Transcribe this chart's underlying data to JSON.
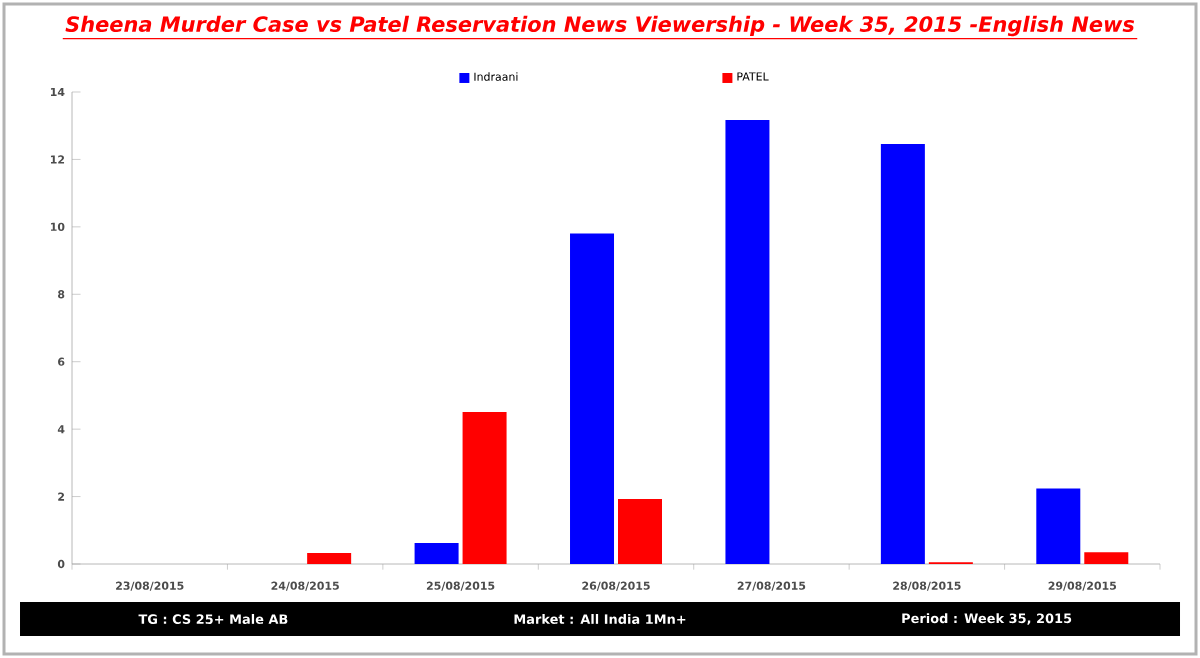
{
  "chart_data": {
    "type": "bar",
    "title": "Sheena Murder Case vs Patel Reservation News Viewership - Week 35, 2015 -English News",
    "categories": [
      "23/08/2015",
      "24/08/2015",
      "25/08/2015",
      "26/08/2015",
      "27/08/2015",
      "28/08/2015",
      "29/08/2015"
    ],
    "series": [
      {
        "name": "Indraani",
        "color": "#0000ff",
        "values": [
          0,
          0,
          0.62,
          9.8,
          13.17,
          12.46,
          2.24
        ]
      },
      {
        "name": "PATEL",
        "color": "#ff0000",
        "values": [
          0,
          0.33,
          4.51,
          1.93,
          0,
          0.05,
          0.35
        ]
      }
    ],
    "ylim": [
      0,
      14
    ],
    "yticks": [
      0,
      2,
      4,
      6,
      8,
      10,
      12,
      14
    ],
    "grid": false,
    "legend": "top",
    "annotations": [
      "TG : CS 25+ Male AB",
      "Market : All India 1Mn+",
      "Period : Week 35, 2015"
    ]
  }
}
